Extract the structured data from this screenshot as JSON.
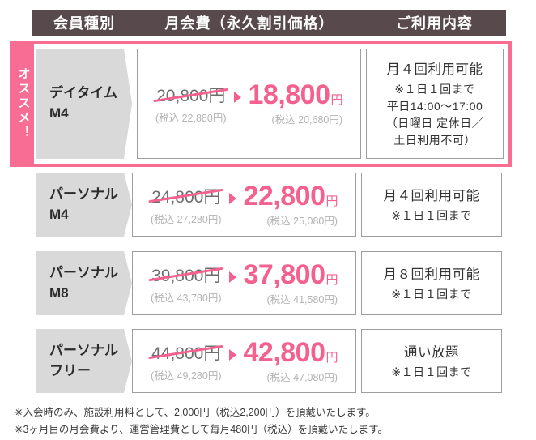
{
  "header": {
    "columns": [
      "会員種別",
      "月会費（永久割引価格）",
      "ご利用内容"
    ]
  },
  "recommend_label": "オススメ！",
  "currency_unit": "円",
  "plans": [
    {
      "name_line1": "デイタイム",
      "name_line2": "M4",
      "old_price": "20,800円",
      "old_tax": "(税込 22,880円)",
      "new_price": "18,800",
      "new_tax": "(税込 20,680円)",
      "usage_title": "月４回利用可能",
      "usage_lines": [
        "※１日１回まで",
        "平日14:00〜17:00",
        "（日曜日 定休日／",
        "土日利用不可）"
      ]
    },
    {
      "name_line1": "パーソナル",
      "name_line2": "M4",
      "old_price": "24,800円",
      "old_tax": "(税込 27,280円)",
      "new_price": "22,800",
      "new_tax": "(税込 25,080円)",
      "usage_title": "月４回利用可能",
      "usage_lines": [
        "※１日１回まで"
      ]
    },
    {
      "name_line1": "パーソナル",
      "name_line2": "M8",
      "old_price": "39,800円",
      "old_tax": "(税込 43,780円)",
      "new_price": "37,800",
      "new_tax": "(税込 41,580円)",
      "usage_title": "月８回利用可能",
      "usage_lines": [
        "※１日１回まで"
      ]
    },
    {
      "name_line1": "パーソナル",
      "name_line2": "フリー",
      "old_price": "44,800円",
      "old_tax": "(税込 49,280円)",
      "new_price": "42,800",
      "new_tax": "(税込 47,080円)",
      "usage_title": "通い放題",
      "usage_lines": [
        "※１日１回まで"
      ]
    }
  ],
  "notes": [
    "※入会時のみ、施設利用料として、2,000円（税込2,200円）を頂戴いたします。",
    "※3ヶ月目の月会費より、運営管理費として毎月480円（税込）を頂戴いたします。"
  ],
  "colors": {
    "header_bg": "#58494d",
    "accent_pink": "#f4618e",
    "frame_pink": "#f76d93",
    "plan_cell_bg": "#d9d9d9"
  }
}
